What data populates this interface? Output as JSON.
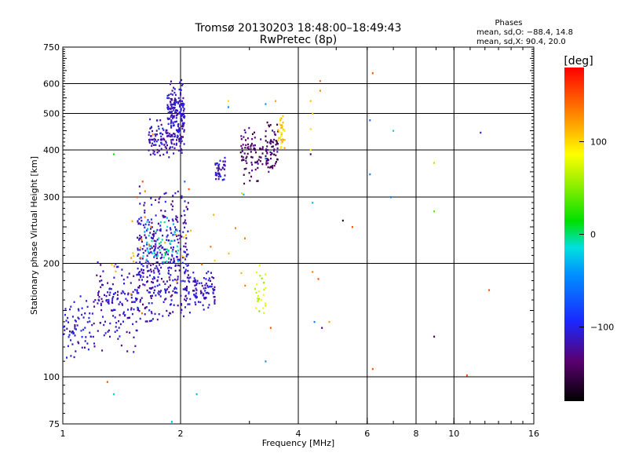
{
  "chart_data": {
    "type": "scatter",
    "title": "Tromsø 20130203 18:48:00–18:49:43",
    "subtitle": "RwPretec (8p)",
    "xlabel": "Frequency [MHz]",
    "ylabel": "Stationary phase Virtual Height [km]",
    "x_scale": "log",
    "y_scale": "log",
    "xlim": [
      1,
      16
    ],
    "ylim": [
      75,
      750
    ],
    "x_ticks": [
      1,
      2,
      4,
      6,
      8,
      10,
      16
    ],
    "y_ticks": [
      75,
      100,
      200,
      300,
      400,
      500,
      600,
      750
    ],
    "x_gridlines": [
      2,
      4,
      6,
      8,
      10
    ],
    "y_gridlines": [
      100,
      200,
      300,
      400,
      500,
      600
    ],
    "grid": true,
    "phases_box": {
      "title": "Phases",
      "line_o": "mean, sd,O: −88.4, 14.8",
      "line_x": "mean, sd,X:  90.4, 20.0"
    },
    "colorbar": {
      "label": "[deg]",
      "range": [
        -180,
        180
      ],
      "ticks": [
        100,
        0,
        -100
      ],
      "tick_labels": [
        "100",
        "0",
        "−100"
      ]
    },
    "color_encoding": "phase in degrees",
    "clusters": [
      {
        "x": [
          1.0,
          1.2
        ],
        "y": [
          115,
          160
        ],
        "phase": -110,
        "n": 70
      },
      {
        "x": [
          1.2,
          1.55
        ],
        "y": [
          120,
          200
        ],
        "phase": -115,
        "n": 150
      },
      {
        "x": [
          1.55,
          2.1
        ],
        "y": [
          140,
          300
        ],
        "phase": -115,
        "n": 420
      },
      {
        "x": [
          1.6,
          2.0
        ],
        "y": [
          200,
          260
        ],
        "phase": -20,
        "n": 50
      },
      {
        "x": [
          1.65,
          2.05
        ],
        "y": [
          390,
          480
        ],
        "phase": -115,
        "n": 140
      },
      {
        "x": [
          1.85,
          2.05
        ],
        "y": [
          440,
          600
        ],
        "phase": -110,
        "n": 140
      },
      {
        "x": [
          2.1,
          2.45
        ],
        "y": [
          150,
          190
        ],
        "phase": -115,
        "n": 90
      },
      {
        "x": [
          2.45,
          2.6
        ],
        "y": [
          330,
          380
        ],
        "phase": -110,
        "n": 40
      },
      {
        "x": [
          2.85,
          3.25
        ],
        "y": [
          330,
          460
        ],
        "phase": -145,
        "n": 80
      },
      {
        "x": [
          3.1,
          3.3
        ],
        "y": [
          150,
          195
        ],
        "phase": 70,
        "n": 25
      },
      {
        "x": [
          3.3,
          3.55
        ],
        "y": [
          350,
          470
        ],
        "phase": -140,
        "n": 70
      },
      {
        "x": [
          3.55,
          3.7
        ],
        "y": [
          400,
          500
        ],
        "phase": 105,
        "n": 35
      },
      {
        "x": [
          1.3,
          3.0
        ],
        "y": [
          150,
          300
        ],
        "phase": 120,
        "n": 35
      }
    ],
    "sparse_points": [
      {
        "x": 4.55,
        "y": 610,
        "phase": 140
      },
      {
        "x": 4.55,
        "y": 575,
        "phase": 130
      },
      {
        "x": 4.3,
        "y": 540,
        "phase": 110
      },
      {
        "x": 4.35,
        "y": 500,
        "phase": 105
      },
      {
        "x": 4.3,
        "y": 455,
        "phase": 100
      },
      {
        "x": 4.3,
        "y": 400,
        "phase": 90
      },
      {
        "x": 4.3,
        "y": 390,
        "phase": -150
      },
      {
        "x": 4.35,
        "y": 290,
        "phase": -30
      },
      {
        "x": 4.35,
        "y": 190,
        "phase": 130
      },
      {
        "x": 4.5,
        "y": 182,
        "phase": 150
      },
      {
        "x": 4.4,
        "y": 140,
        "phase": -50
      },
      {
        "x": 4.6,
        "y": 135,
        "phase": -140
      },
      {
        "x": 4.8,
        "y": 140,
        "phase": 120
      },
      {
        "x": 5.2,
        "y": 260,
        "phase": -170
      },
      {
        "x": 5.5,
        "y": 250,
        "phase": 150
      },
      {
        "x": 6.1,
        "y": 480,
        "phase": -60
      },
      {
        "x": 6.1,
        "y": 345,
        "phase": -50
      },
      {
        "x": 6.2,
        "y": 640,
        "phase": 150
      },
      {
        "x": 6.2,
        "y": 105,
        "phase": 150
      },
      {
        "x": 6.9,
        "y": 300,
        "phase": -50
      },
      {
        "x": 7.0,
        "y": 450,
        "phase": -20
      },
      {
        "x": 8.9,
        "y": 370,
        "phase": 60
      },
      {
        "x": 8.9,
        "y": 275,
        "phase": 40
      },
      {
        "x": 8.9,
        "y": 128,
        "phase": -150
      },
      {
        "x": 10.8,
        "y": 101,
        "phase": 150
      },
      {
        "x": 11.7,
        "y": 445,
        "phase": -110
      },
      {
        "x": 12.3,
        "y": 170,
        "phase": 150
      },
      {
        "x": 2.2,
        "y": 90,
        "phase": -30
      },
      {
        "x": 1.35,
        "y": 90,
        "phase": -20
      },
      {
        "x": 1.3,
        "y": 97,
        "phase": 150
      },
      {
        "x": 1.9,
        "y": 76,
        "phase": -30
      },
      {
        "x": 3.3,
        "y": 110,
        "phase": -40
      },
      {
        "x": 3.4,
        "y": 135,
        "phase": 150
      },
      {
        "x": 2.65,
        "y": 540,
        "phase": 100
      },
      {
        "x": 2.65,
        "y": 520,
        "phase": -50
      },
      {
        "x": 3.3,
        "y": 530,
        "phase": -40
      },
      {
        "x": 3.5,
        "y": 540,
        "phase": 120
      },
      {
        "x": 3.6,
        "y": 485,
        "phase": 90
      },
      {
        "x": 3.3,
        "y": 380,
        "phase": -60
      },
      {
        "x": 2.9,
        "y": 305,
        "phase": -30
      },
      {
        "x": 1.35,
        "y": 390,
        "phase": 20
      },
      {
        "x": 1.6,
        "y": 330,
        "phase": 150
      },
      {
        "x": 1.55,
        "y": 300,
        "phase": 150
      },
      {
        "x": 2.1,
        "y": 315,
        "phase": 150
      },
      {
        "x": 2.05,
        "y": 330,
        "phase": -60
      },
      {
        "x": 1.7,
        "y": 440,
        "phase": 130
      }
    ]
  }
}
